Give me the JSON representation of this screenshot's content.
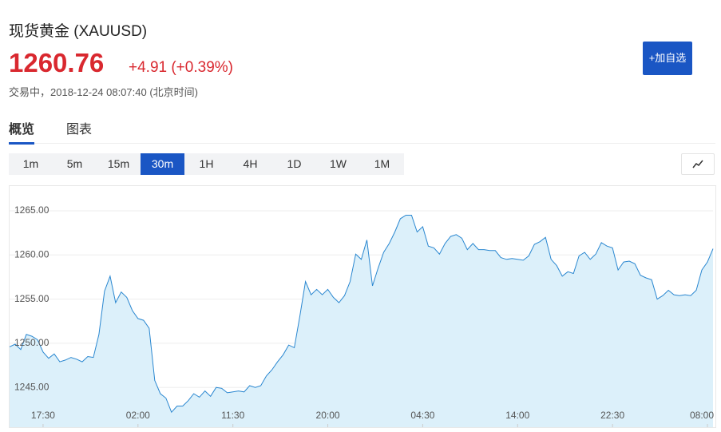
{
  "header": {
    "title": "现货黄金 (XAUUSD)",
    "price": "1260.76",
    "change": "+4.91 (+0.39%)",
    "status": "交易中，2018-12-24 08:07:40 (北京时间)",
    "button": "+加自选"
  },
  "tabs": [
    "概览",
    "图表"
  ],
  "intervals": {
    "items": [
      "1m",
      "5m",
      "15m",
      "30m",
      "1H",
      "4H",
      "1D",
      "1W",
      "1M"
    ],
    "active": 3
  },
  "chart_data": {
    "type": "area",
    "color": "#2a87d0",
    "fill": "#dcf0fa",
    "grid": true,
    "x": [
      0,
      1,
      2,
      3,
      4,
      5,
      6,
      7,
      8,
      9,
      10,
      11,
      12,
      13,
      14,
      15,
      16,
      17,
      18,
      19,
      20,
      21,
      22,
      23,
      24,
      25,
      26,
      27,
      28,
      29,
      30,
      31,
      32,
      33,
      34,
      35,
      36,
      37,
      38,
      39,
      40,
      41,
      42,
      43,
      44,
      45,
      46,
      47,
      48,
      49,
      50,
      51,
      52,
      53,
      54,
      55,
      56,
      57,
      58,
      59,
      60,
      61,
      62,
      63,
      64,
      65,
      66,
      67,
      68,
      69,
      70,
      71,
      72,
      73,
      74,
      75,
      76,
      77,
      78,
      79,
      80,
      81,
      82,
      83,
      84,
      85,
      86,
      87,
      88,
      89,
      90,
      91,
      92,
      93,
      94,
      95,
      96,
      97,
      98,
      99,
      100,
      101,
      102,
      103,
      104,
      105,
      106,
      107,
      108,
      109,
      110,
      111,
      112,
      113,
      114,
      115,
      116,
      117,
      118,
      119,
      120,
      121,
      122,
      123,
      124,
      125,
      126
    ],
    "values": [
      1249.6,
      1249.9,
      1249.3,
      1251.0,
      1250.8,
      1250.4,
      1249.0,
      1248.3,
      1248.8,
      1247.9,
      1248.1,
      1248.4,
      1248.2,
      1247.9,
      1248.5,
      1248.4,
      1251.0,
      1255.9,
      1257.6,
      1254.6,
      1255.8,
      1255.2,
      1253.7,
      1252.8,
      1252.6,
      1251.7,
      1245.8,
      1244.3,
      1243.8,
      1242.2,
      1242.9,
      1242.9,
      1243.5,
      1244.3,
      1243.9,
      1244.6,
      1244.0,
      1245.0,
      1244.9,
      1244.4,
      1244.5,
      1244.6,
      1244.5,
      1245.2,
      1245.0,
      1245.2,
      1246.3,
      1247.0,
      1247.9,
      1248.7,
      1249.8,
      1249.5,
      1253.1,
      1257.0,
      1255.5,
      1256.1,
      1255.5,
      1256.1,
      1255.2,
      1254.6,
      1255.4,
      1257.0,
      1260.1,
      1259.5,
      1261.7,
      1256.5,
      1258.5,
      1260.3,
      1261.3,
      1262.6,
      1264.1,
      1264.5,
      1264.5,
      1262.6,
      1263.2,
      1261.0,
      1260.8,
      1260.1,
      1261.3,
      1262.1,
      1262.3,
      1261.9,
      1260.6,
      1261.3,
      1260.6,
      1260.6,
      1260.5,
      1260.5,
      1259.7,
      1259.5,
      1259.6,
      1259.5,
      1259.4,
      1259.9,
      1261.2,
      1261.5,
      1262.0,
      1259.5,
      1258.8,
      1257.6,
      1258.1,
      1257.9,
      1259.9,
      1260.3,
      1259.5,
      1260.1,
      1261.4,
      1261.0,
      1260.8,
      1258.3,
      1259.2,
      1259.3,
      1259.0,
      1257.7,
      1257.4,
      1257.2,
      1255.0,
      1255.4,
      1256.0,
      1255.5,
      1255.4,
      1255.5,
      1255.4,
      1256.0,
      1258.3,
      1259.2,
      1260.7
    ],
    "xlim": [
      0,
      126
    ],
    "xticks": [
      {
        "value": 6,
        "label": "17:30"
      },
      {
        "value": 23,
        "label": "02:00"
      },
      {
        "value": 40,
        "label": "11:30"
      },
      {
        "value": 57,
        "label": "20:00"
      },
      {
        "value": 74,
        "label": "04:30"
      },
      {
        "value": 91,
        "label": "14:00"
      },
      {
        "value": 108,
        "label": "22:30"
      },
      {
        "value": 125,
        "label": "08:00"
      }
    ],
    "ylim": [
      1240.5,
      1267.8
    ],
    "yticks": [
      {
        "value": 1245,
        "label": "1245.00"
      },
      {
        "value": 1250,
        "label": "1250.00"
      },
      {
        "value": 1255,
        "label": "1255.00"
      },
      {
        "value": 1260,
        "label": "1260.00"
      },
      {
        "value": 1265,
        "label": "1265.00"
      }
    ]
  }
}
